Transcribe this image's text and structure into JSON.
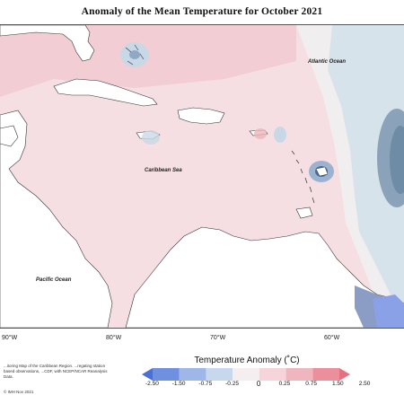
{
  "title": "Anomaly of the Mean Temperature for October 2021",
  "map": {
    "labels": {
      "atlantic": "Atlantic Ocean",
      "caribbean": "Caribbean Sea",
      "pacific": "Pacific Ocean"
    },
    "longitude_ticks": [
      "90°W",
      "80°W",
      "70°W",
      "60°W"
    ]
  },
  "legend": {
    "title": "Temperature Anomaly (˚C)",
    "values": [
      "-2.50",
      "-1.50",
      "-0.75",
      "-0.25",
      "0",
      "0.25",
      "0.75",
      "1.50",
      "2.50"
    ],
    "colors": [
      "#4a6fd6",
      "#6f8fdf",
      "#9fb6e8",
      "#c7d7ec",
      "#f4eef0",
      "#f5d4da",
      "#f0b6bf",
      "#ec8f9c",
      "#e86f7f"
    ]
  },
  "description": "...itoring Map of the Caribbean Region. ...regating station based observations, ...CDF, with NCEP/NCAR Reanalysis Data.",
  "credit": "© IMH Nov 2021"
}
